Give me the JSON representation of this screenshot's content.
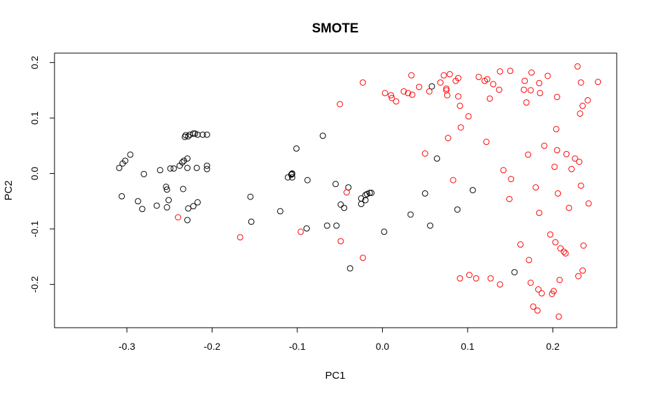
{
  "chart_data": {
    "type": "scatter",
    "title": "SMOTE",
    "xlabel": "PC1",
    "ylabel": "PC2",
    "xlim": [
      -0.385,
      0.275
    ],
    "ylim": [
      -0.278,
      0.217
    ],
    "xticks": [
      -0.3,
      -0.2,
      -0.1,
      0.0,
      0.1,
      0.2
    ],
    "xtick_labels": [
      "-0.3",
      "-0.2",
      "-0.1",
      "0.0",
      "0.1",
      "0.2"
    ],
    "yticks": [
      -0.2,
      -0.1,
      0.0,
      0.1,
      0.2
    ],
    "ytick_labels": [
      "-0.2",
      "-0.1",
      "0.0",
      "0.1",
      "0.2"
    ],
    "grid": false,
    "series": [
      {
        "color": "#000000",
        "marker": "open-circle",
        "points": [
          [
            -0.309,
            0.01
          ],
          [
            -0.305,
            0.018
          ],
          [
            -0.302,
            0.023
          ],
          [
            -0.296,
            0.034
          ],
          [
            -0.306,
            -0.041
          ],
          [
            -0.287,
            -0.05
          ],
          [
            -0.282,
            -0.064
          ],
          [
            -0.28,
            -0.001
          ],
          [
            -0.265,
            -0.058
          ],
          [
            -0.261,
            0.006
          ],
          [
            -0.254,
            -0.024
          ],
          [
            -0.253,
            -0.029
          ],
          [
            -0.251,
            -0.048
          ],
          [
            -0.253,
            -0.061
          ],
          [
            -0.249,
            0.009
          ],
          [
            -0.245,
            0.009
          ],
          [
            -0.238,
            0.014
          ],
          [
            -0.235,
            0.02
          ],
          [
            -0.233,
            0.023
          ],
          [
            -0.234,
            -0.028
          ],
          [
            -0.229,
            0.027
          ],
          [
            -0.229,
            0.01
          ],
          [
            -0.229,
            -0.084
          ],
          [
            -0.228,
            -0.063
          ],
          [
            -0.222,
            -0.059
          ],
          [
            -0.217,
            -0.052
          ],
          [
            -0.218,
            0.01
          ],
          [
            -0.206,
            0.014
          ],
          [
            -0.206,
            0.008
          ],
          [
            -0.232,
            0.066
          ],
          [
            -0.231,
            0.069
          ],
          [
            -0.228,
            0.067
          ],
          [
            -0.226,
            0.07
          ],
          [
            -0.222,
            0.072
          ],
          [
            -0.22,
            0.072
          ],
          [
            -0.217,
            0.07
          ],
          [
            -0.211,
            0.07
          ],
          [
            -0.206,
            0.07
          ],
          [
            -0.155,
            -0.042
          ],
          [
            -0.154,
            -0.087
          ],
          [
            -0.12,
            -0.068
          ],
          [
            -0.111,
            -0.007
          ],
          [
            -0.107,
            -0.002
          ],
          [
            -0.106,
            0.0
          ],
          [
            -0.106,
            -0.001
          ],
          [
            -0.106,
            -0.007
          ],
          [
            -0.101,
            0.045
          ],
          [
            -0.088,
            -0.012
          ],
          [
            -0.089,
            -0.099
          ],
          [
            -0.07,
            0.068
          ],
          [
            -0.065,
            -0.094
          ],
          [
            -0.055,
            -0.019
          ],
          [
            -0.054,
            -0.094
          ],
          [
            -0.049,
            -0.056
          ],
          [
            -0.045,
            -0.062
          ],
          [
            -0.04,
            -0.025
          ],
          [
            -0.038,
            -0.171
          ],
          [
            -0.025,
            -0.045
          ],
          [
            -0.025,
            -0.055
          ],
          [
            -0.02,
            -0.048
          ],
          [
            -0.02,
            -0.039
          ],
          [
            -0.018,
            -0.037
          ],
          [
            -0.015,
            -0.035
          ],
          [
            -0.013,
            -0.035
          ],
          [
            0.002,
            -0.105
          ],
          [
            0.033,
            -0.074
          ],
          [
            0.05,
            -0.036
          ],
          [
            0.056,
            -0.094
          ],
          [
            0.058,
            0.157
          ],
          [
            0.064,
            0.027
          ],
          [
            0.088,
            -0.065
          ],
          [
            0.106,
            -0.03
          ],
          [
            0.155,
            -0.178
          ]
        ]
      },
      {
        "color": "#ff0000",
        "marker": "open-circle",
        "points": [
          [
            -0.24,
            -0.079
          ],
          [
            -0.167,
            -0.115
          ],
          [
            -0.096,
            -0.105
          ],
          [
            -0.05,
            0.125
          ],
          [
            -0.049,
            -0.122
          ],
          [
            -0.042,
            -0.034
          ],
          [
            -0.023,
            0.164
          ],
          [
            -0.023,
            -0.152
          ],
          [
            0.003,
            0.145
          ],
          [
            0.01,
            0.141
          ],
          [
            0.011,
            0.136
          ],
          [
            0.016,
            0.13
          ],
          [
            0.025,
            0.148
          ],
          [
            0.03,
            0.145
          ],
          [
            0.034,
            0.177
          ],
          [
            0.035,
            0.142
          ],
          [
            0.043,
            0.156
          ],
          [
            0.05,
            0.036
          ],
          [
            0.055,
            0.148
          ],
          [
            0.068,
            0.164
          ],
          [
            0.072,
            0.177
          ],
          [
            0.075,
            0.153
          ],
          [
            0.075,
            0.15
          ],
          [
            0.076,
            0.141
          ],
          [
            0.077,
            0.064
          ],
          [
            0.079,
            0.179
          ],
          [
            0.083,
            -0.012
          ],
          [
            0.086,
            0.167
          ],
          [
            0.089,
            0.172
          ],
          [
            0.089,
            0.139
          ],
          [
            0.091,
            0.122
          ],
          [
            0.092,
            0.083
          ],
          [
            0.091,
            -0.189
          ],
          [
            0.101,
            0.103
          ],
          [
            0.102,
            -0.183
          ],
          [
            0.11,
            -0.189
          ],
          [
            0.113,
            0.174
          ],
          [
            0.12,
            0.167
          ],
          [
            0.122,
            0.057
          ],
          [
            0.123,
            0.17
          ],
          [
            0.126,
            0.135
          ],
          [
            0.127,
            -0.189
          ],
          [
            0.13,
            0.161
          ],
          [
            0.137,
            0.151
          ],
          [
            0.138,
            0.184
          ],
          [
            0.138,
            -0.2
          ],
          [
            0.142,
            0.006
          ],
          [
            0.15,
            0.185
          ],
          [
            0.149,
            -0.046
          ],
          [
            0.151,
            -0.01
          ],
          [
            0.162,
            -0.128
          ],
          [
            0.166,
            0.151
          ],
          [
            0.167,
            0.167
          ],
          [
            0.169,
            0.128
          ],
          [
            0.171,
            0.034
          ],
          [
            0.172,
            -0.156
          ],
          [
            0.174,
            0.15
          ],
          [
            0.174,
            -0.197
          ],
          [
            0.175,
            0.182
          ],
          [
            0.177,
            -0.24
          ],
          [
            0.18,
            -0.025
          ],
          [
            0.182,
            -0.247
          ],
          [
            0.184,
            0.163
          ],
          [
            0.184,
            -0.071
          ],
          [
            0.183,
            -0.209
          ],
          [
            0.185,
            0.145
          ],
          [
            0.187,
            -0.216
          ],
          [
            0.19,
            0.05
          ],
          [
            0.194,
            0.176
          ],
          [
            0.197,
            -0.11
          ],
          [
            0.199,
            -0.217
          ],
          [
            0.201,
            -0.212
          ],
          [
            0.202,
            0.012
          ],
          [
            0.203,
            -0.124
          ],
          [
            0.204,
            0.08
          ],
          [
            0.205,
            0.042
          ],
          [
            0.205,
            0.138
          ],
          [
            0.206,
            -0.036
          ],
          [
            0.207,
            -0.258
          ],
          [
            0.208,
            -0.192
          ],
          [
            0.209,
            -0.135
          ],
          [
            0.213,
            -0.141
          ],
          [
            0.215,
            -0.144
          ],
          [
            0.216,
            0.035
          ],
          [
            0.219,
            -0.062
          ],
          [
            0.222,
            0.008
          ],
          [
            0.226,
            0.027
          ],
          [
            0.229,
            0.193
          ],
          [
            0.23,
            -0.185
          ],
          [
            0.231,
            0.021
          ],
          [
            0.232,
            0.108
          ],
          [
            0.233,
            -0.022
          ],
          [
            0.233,
            0.164
          ],
          [
            0.235,
            0.122
          ],
          [
            0.235,
            -0.175
          ],
          [
            0.236,
            -0.13
          ],
          [
            0.241,
            0.132
          ],
          [
            0.242,
            -0.054
          ],
          [
            0.253,
            0.165
          ]
        ]
      }
    ]
  }
}
